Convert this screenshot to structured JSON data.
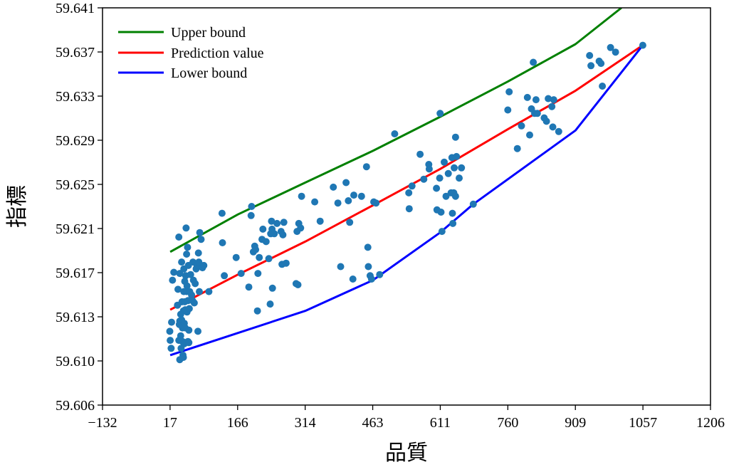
{
  "chart_data": {
    "type": "scatter",
    "xlabel": "品質",
    "ylabel": "指標",
    "xlim": [
      -132,
      1206
    ],
    "ylim": [
      59.606,
      59.641
    ],
    "x_ticks": [
      "−132",
      "17",
      "166",
      "314",
      "463",
      "611",
      "760",
      "909",
      "1057",
      "1206"
    ],
    "y_ticks": [
      "59.606",
      "59.610",
      "59.613",
      "59.617",
      "59.621",
      "59.625",
      "59.629",
      "59.633",
      "59.637",
      "59.641"
    ],
    "grid": false,
    "legend_position": "top-left",
    "colors": {
      "scatter": "#1f77b4",
      "upper": "#008000",
      "prediction": "#ff0000",
      "lower": "#0000ff"
    },
    "lines": [
      {
        "name": "Upper bound",
        "color": "#008000",
        "points": [
          [
            17,
            59.6195
          ],
          [
            166,
            59.6228
          ],
          [
            314,
            59.6256
          ],
          [
            463,
            59.6284
          ],
          [
            611,
            59.6314
          ],
          [
            760,
            59.6345
          ],
          [
            909,
            59.6378
          ],
          [
            1010,
            59.641
          ]
        ]
      },
      {
        "name": "Prediction value",
        "color": "#ff0000",
        "points": [
          [
            17,
            59.6144
          ],
          [
            166,
            59.6175
          ],
          [
            314,
            59.6204
          ],
          [
            463,
            59.6236
          ],
          [
            611,
            59.6268
          ],
          [
            760,
            59.6303
          ],
          [
            909,
            59.6337
          ],
          [
            1057,
            59.6377
          ]
        ]
      },
      {
        "name": "Lower bound",
        "color": "#0000ff",
        "points": [
          [
            17,
            59.6104
          ],
          [
            314,
            59.6143
          ],
          [
            463,
            59.617
          ],
          [
            611,
            59.6212
          ],
          [
            684,
            59.6237
          ],
          [
            909,
            59.6302
          ],
          [
            1057,
            59.6377
          ]
        ]
      }
    ],
    "scatter_points": [
      [
        16,
        59.6125
      ],
      [
        17,
        59.6117
      ],
      [
        19,
        59.611
      ],
      [
        20,
        59.6133
      ],
      [
        22,
        59.617
      ],
      [
        25,
        59.6177
      ],
      [
        33,
        59.6148
      ],
      [
        34,
        59.6162
      ],
      [
        36,
        59.6208
      ],
      [
        36,
        59.6117
      ],
      [
        37,
        59.6131
      ],
      [
        38,
        59.61
      ],
      [
        38,
        59.6134
      ],
      [
        38,
        59.6176
      ],
      [
        40,
        59.614
      ],
      [
        40,
        59.6121
      ],
      [
        41,
        59.611
      ],
      [
        42,
        59.6135
      ],
      [
        42,
        59.6186
      ],
      [
        43,
        59.6151
      ],
      [
        44,
        59.6128
      ],
      [
        44,
        59.6116
      ],
      [
        45,
        59.613
      ],
      [
        45,
        59.6104
      ],
      [
        46,
        59.6102
      ],
      [
        46,
        59.6143
      ],
      [
        47,
        59.618
      ],
      [
        47,
        59.616
      ],
      [
        48,
        59.6132
      ],
      [
        48,
        59.6114
      ],
      [
        49,
        59.6151
      ],
      [
        49,
        59.6169
      ],
      [
        50,
        59.6144
      ],
      [
        50,
        59.6128
      ],
      [
        51,
        59.6174
      ],
      [
        52,
        59.6216
      ],
      [
        53,
        59.6193
      ],
      [
        53,
        59.616
      ],
      [
        54,
        59.6165
      ],
      [
        54,
        59.6142
      ],
      [
        55,
        59.6199
      ],
      [
        56,
        59.6152
      ],
      [
        56,
        59.6116
      ],
      [
        57,
        59.6183
      ],
      [
        58,
        59.6126
      ],
      [
        58,
        59.6115
      ],
      [
        59,
        59.6145
      ],
      [
        60,
        59.616
      ],
      [
        62,
        59.6175
      ],
      [
        64,
        59.6157
      ],
      [
        66,
        59.6152
      ],
      [
        67,
        59.6186
      ],
      [
        68,
        59.617
      ],
      [
        70,
        59.615
      ],
      [
        72,
        59.6167
      ],
      [
        74,
        59.618
      ],
      [
        76,
        59.6183
      ],
      [
        78,
        59.6125
      ],
      [
        79,
        59.6194
      ],
      [
        80,
        59.6186
      ],
      [
        81,
        59.616
      ],
      [
        82,
        59.6212
      ],
      [
        85,
        59.6206
      ],
      [
        88,
        59.6181
      ],
      [
        91,
        59.6183
      ],
      [
        102,
        59.616
      ],
      [
        131,
        59.6229
      ],
      [
        132,
        59.6203
      ],
      [
        136,
        59.6174
      ],
      [
        162,
        59.619
      ],
      [
        173,
        59.6176
      ],
      [
        190,
        59.6164
      ],
      [
        195,
        59.6227
      ],
      [
        196,
        59.6235
      ],
      [
        200,
        59.6195
      ],
      [
        203,
        59.62
      ],
      [
        205,
        59.6197
      ],
      [
        209,
        59.6143
      ],
      [
        210,
        59.6176
      ],
      [
        213,
        59.619
      ],
      [
        219,
        59.6206
      ],
      [
        221,
        59.6215
      ],
      [
        228,
        59.6204
      ],
      [
        234,
        59.6189
      ],
      [
        237,
        59.6149
      ],
      [
        238,
        59.6211
      ],
      [
        240,
        59.6222
      ],
      [
        241,
        59.6215
      ],
      [
        242,
        59.6163
      ],
      [
        246,
        59.6211
      ],
      [
        252,
        59.622
      ],
      [
        261,
        59.6213
      ],
      [
        263,
        59.6184
      ],
      [
        265,
        59.621
      ],
      [
        267,
        59.6221
      ],
      [
        272,
        59.6185
      ],
      [
        294,
        59.6167
      ],
      [
        296,
        59.6213
      ],
      [
        298,
        59.6166
      ],
      [
        300,
        59.622
      ],
      [
        304,
        59.6216
      ],
      [
        306,
        59.6244
      ],
      [
        335,
        59.6239
      ],
      [
        347,
        59.6222
      ],
      [
        376,
        59.6252
      ],
      [
        386,
        59.6238
      ],
      [
        392,
        59.6182
      ],
      [
        404,
        59.6256
      ],
      [
        409,
        59.624
      ],
      [
        412,
        59.6221
      ],
      [
        419,
        59.6171
      ],
      [
        421,
        59.6245
      ],
      [
        438,
        59.6244
      ],
      [
        449,
        59.627
      ],
      [
        452,
        59.6199
      ],
      [
        453,
        59.6182
      ],
      [
        457,
        59.6174
      ],
      [
        460,
        59.6171
      ],
      [
        465,
        59.6239
      ],
      [
        470,
        59.6238
      ],
      [
        478,
        59.6175
      ],
      [
        511,
        59.6299
      ],
      [
        542,
        59.6247
      ],
      [
        543,
        59.6233
      ],
      [
        549,
        59.6253
      ],
      [
        567,
        59.6281
      ],
      [
        575,
        59.6259
      ],
      [
        586,
        59.6272
      ],
      [
        587,
        59.6268
      ],
      [
        603,
        59.6251
      ],
      [
        604,
        59.6232
      ],
      [
        610,
        59.626
      ],
      [
        611,
        59.6317
      ],
      [
        613,
        59.623
      ],
      [
        615,
        59.6213
      ],
      [
        620,
        59.6274
      ],
      [
        624,
        59.6244
      ],
      [
        629,
        59.6264
      ],
      [
        635,
        59.6247
      ],
      [
        637,
        59.6278
      ],
      [
        638,
        59.6229
      ],
      [
        639,
        59.622
      ],
      [
        641,
        59.6247
      ],
      [
        642,
        59.6269
      ],
      [
        645,
        59.6296
      ],
      [
        645,
        59.6244
      ],
      [
        647,
        59.6279
      ],
      [
        653,
        59.626
      ],
      [
        658,
        59.6269
      ],
      [
        684,
        59.6237
      ],
      [
        760,
        59.632
      ],
      [
        763,
        59.6336
      ],
      [
        781,
        59.6286
      ],
      [
        790,
        59.6306
      ],
      [
        803,
        59.6331
      ],
      [
        808,
        59.6298
      ],
      [
        812,
        59.6321
      ],
      [
        816,
        59.6362
      ],
      [
        819,
        59.6317
      ],
      [
        822,
        59.6329
      ],
      [
        825,
        59.6317
      ],
      [
        840,
        59.6313
      ],
      [
        845,
        59.631
      ],
      [
        849,
        59.633
      ],
      [
        857,
        59.6323
      ],
      [
        859,
        59.6305
      ],
      [
        861,
        59.6329
      ],
      [
        872,
        59.6301
      ],
      [
        940,
        59.6368
      ],
      [
        943,
        59.6359
      ],
      [
        961,
        59.6363
      ],
      [
        965,
        59.6361
      ],
      [
        968,
        59.6341
      ],
      [
        986,
        59.6375
      ],
      [
        997,
        59.6371
      ],
      [
        1057,
        59.6377
      ]
    ]
  }
}
